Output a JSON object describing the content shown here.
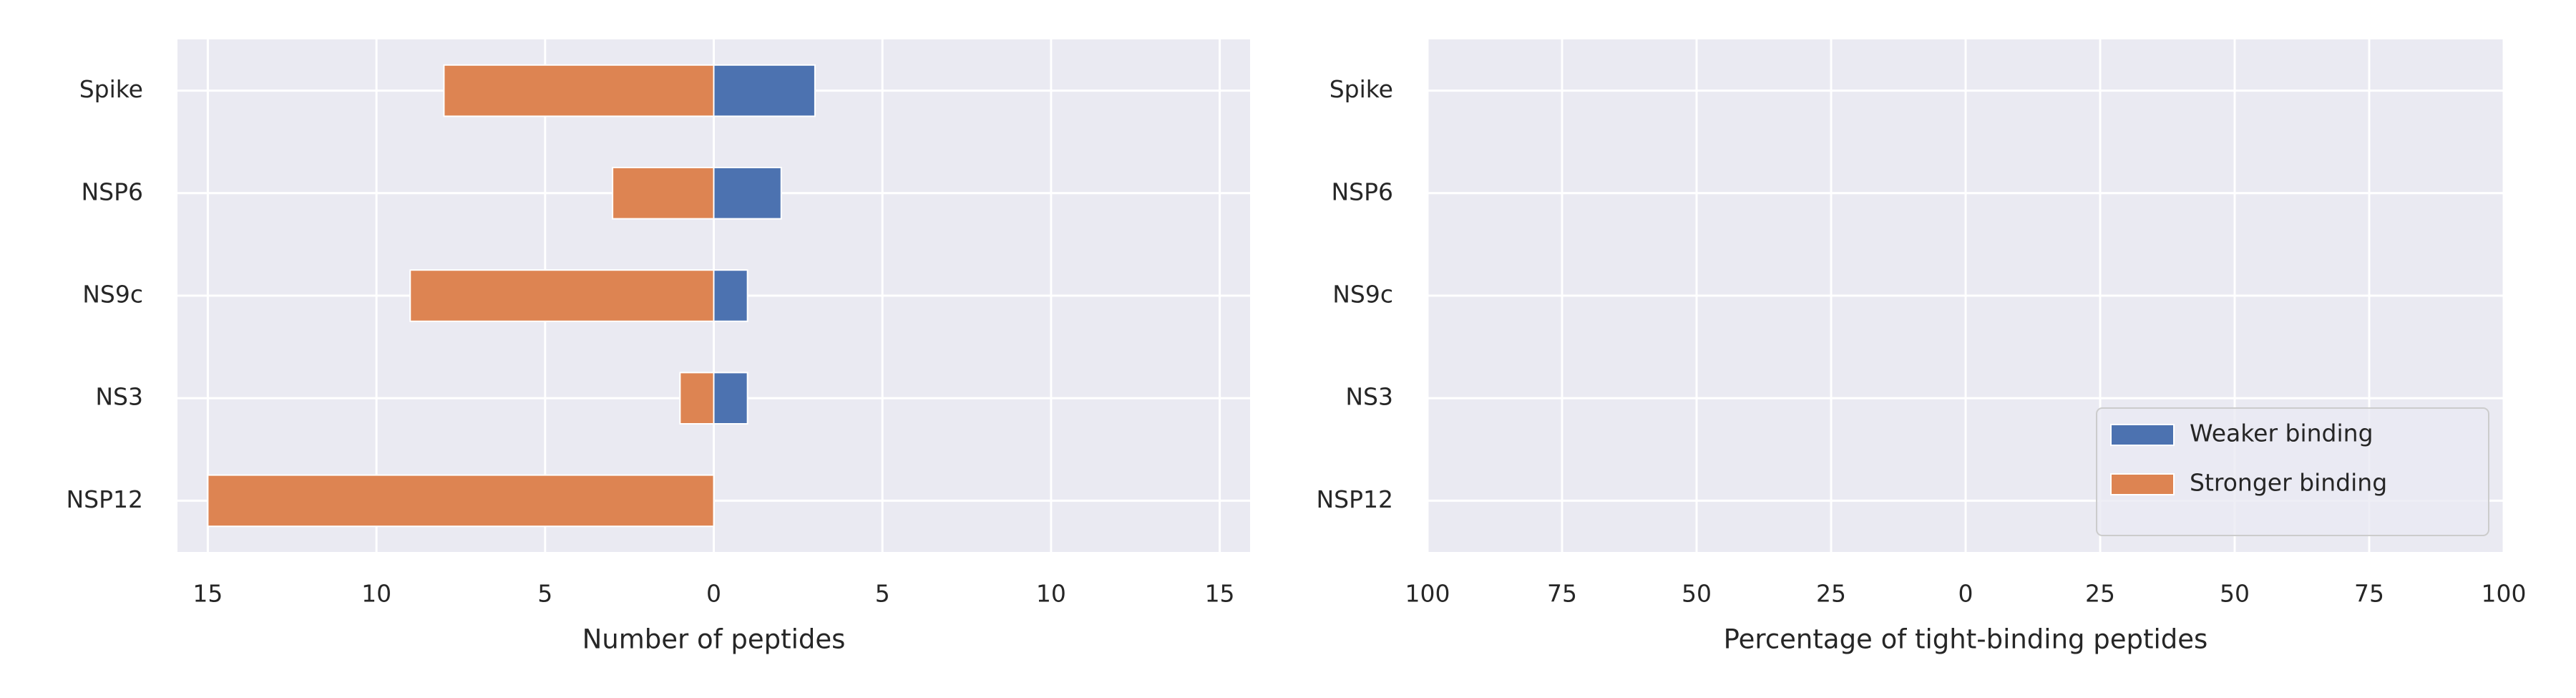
{
  "chart_data": [
    {
      "type": "bar",
      "orientation": "horizontal",
      "categories": [
        "Spike",
        "NSP6",
        "NS9c",
        "NS3",
        "NSP12"
      ],
      "series": [
        {
          "name": "Weaker binding",
          "color": "#4c72b0",
          "values": [
            3,
            2,
            1,
            1,
            0
          ]
        },
        {
          "name": "Stronger binding",
          "color": "#dd8452",
          "values": [
            -8,
            -3,
            -9,
            -1,
            -15
          ]
        }
      ],
      "xlabel": "Number of peptides",
      "xlim": [
        -15.9,
        15.9
      ],
      "xticks": [
        {
          "value": -15,
          "label": "15"
        },
        {
          "value": -10,
          "label": "10"
        },
        {
          "value": -5,
          "label": "5"
        },
        0,
        5,
        10,
        15
      ],
      "grid": true
    },
    {
      "type": "bar",
      "orientation": "horizontal",
      "categories": [
        "Spike",
        "NSP6",
        "NS9c",
        "NS3",
        "NSP12"
      ],
      "xlabel": "Percentage of tight-binding peptides",
      "xlim": [
        -100,
        100
      ],
      "xticks": [
        {
          "value": -100,
          "label": "100"
        },
        {
          "value": -75,
          "label": "75"
        },
        {
          "value": -50,
          "label": "50"
        },
        {
          "value": -25,
          "label": "25"
        },
        0,
        25,
        50,
        75,
        100
      ],
      "grid": true,
      "legend": "lower right"
    }
  ]
}
